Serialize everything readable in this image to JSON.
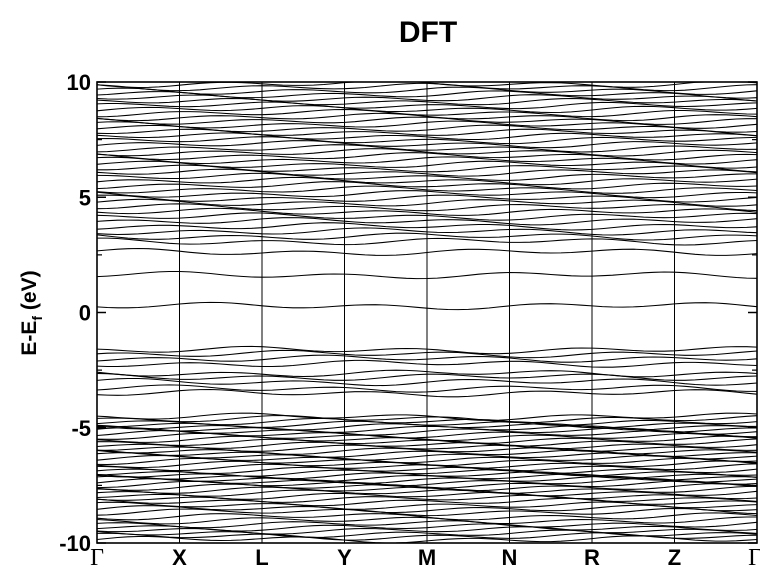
{
  "chart_data": {
    "type": "line",
    "title": "DFT",
    "ylabel": {
      "main": "E-E",
      "sub": "f",
      "unit": " (eV)"
    },
    "xlabel": "",
    "ylim": [
      -10,
      10
    ],
    "yticks_major": [
      -10,
      -5,
      0,
      5,
      10
    ],
    "yticks_minor": [
      -7.5,
      -2.5,
      2.5,
      7.5
    ],
    "kpoints": [
      "Γ",
      "X",
      "L",
      "Y",
      "M",
      "N",
      "R",
      "Z",
      "Γ"
    ],
    "greek_kpoints": [
      0,
      8
    ],
    "grid": false,
    "legend": "none",
    "line_color": "#000000",
    "bands": [
      -9.85,
      -9.72,
      -9.6,
      -9.45,
      -9.32,
      -9.18,
      -9.02,
      -8.85,
      -8.66,
      -8.52,
      -8.38,
      -8.22,
      -8.08,
      -7.95,
      -7.82,
      -7.7,
      -7.58,
      -7.47,
      -7.36,
      -7.26,
      -7.16,
      -7.06,
      -6.95,
      -6.84,
      -6.72,
      -6.6,
      -6.48,
      -6.36,
      -6.24,
      -6.12,
      -6.0,
      -5.88,
      -5.76,
      -5.64,
      -5.52,
      -5.4,
      -5.28,
      -5.16,
      -5.05,
      -4.95,
      -4.85,
      -4.74,
      -4.62,
      -4.52,
      -3.5,
      -3.3,
      -3.02,
      -2.8,
      -2.64,
      -2.22,
      -2.0,
      -1.8,
      -1.63,
      0.28,
      1.62,
      2.62,
      3.08,
      3.3,
      3.52,
      3.74,
      3.96,
      4.16,
      4.36,
      4.56,
      4.76,
      4.95,
      5.14,
      5.33,
      5.52,
      5.7,
      5.88,
      6.06,
      6.24,
      6.42,
      6.6,
      6.78,
      6.95,
      7.12,
      7.3,
      7.47,
      7.64,
      7.81,
      7.98,
      8.15,
      8.32,
      8.48,
      8.65,
      8.82,
      8.98,
      9.14,
      9.3,
      9.46,
      9.62,
      9.78,
      9.92
    ]
  }
}
